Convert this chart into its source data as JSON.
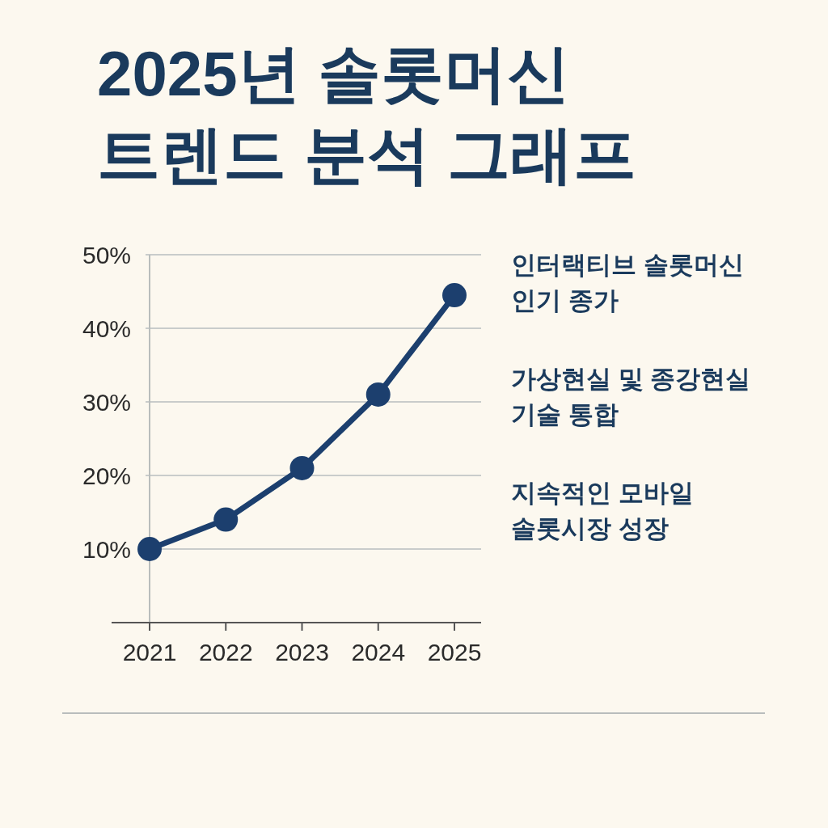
{
  "chart_data": {
    "type": "line",
    "title": "2025년 솔롯머신\n트렌드 분석 그래프",
    "categories": [
      "2021",
      "2022",
      "2023",
      "2024",
      "2025"
    ],
    "series": [
      {
        "color": "#1c3f6e",
        "values": [
          10,
          14,
          21,
          31,
          44.5
        ]
      }
    ],
    "ylim": [
      0,
      50
    ],
    "yticks": [
      {
        "value": 10,
        "label": "10%"
      },
      {
        "value": 20,
        "label": "20%"
      },
      {
        "value": 30,
        "label": "30%"
      },
      {
        "value": 40,
        "label": "40%"
      },
      {
        "value": 50,
        "label": "50%"
      }
    ],
    "grid": "y",
    "marker": "circle",
    "line_style": "solid",
    "annotations": [
      "인터랙티브 솔롯머신\n인기 종가",
      "가상현실 및 종강현실\n기술 통합",
      "지속적인 모바일\n솔롯시장 성장"
    ]
  }
}
